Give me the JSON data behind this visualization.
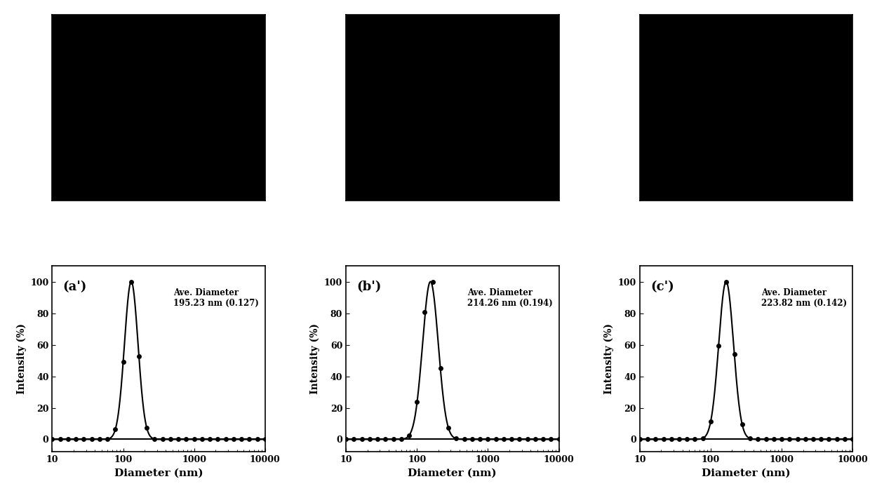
{
  "panels": [
    {
      "label": "(a')",
      "ave_diameter": "Ave. Diameter\n195.23 nm (0.127)",
      "peak_nm": 130,
      "sigma": 0.22
    },
    {
      "label": "(b')",
      "ave_diameter": "Ave. Diameter\n214.26 nm (0.194)",
      "peak_nm": 155,
      "sigma": 0.255
    },
    {
      "label": "(c')",
      "ave_diameter": "Ave. Diameter\n223.82 nm (0.142)",
      "peak_nm": 165,
      "sigma": 0.24
    }
  ],
  "xlim": [
    10,
    10000
  ],
  "ylim": [
    -8,
    110
  ],
  "yticks": [
    0,
    20,
    40,
    60,
    80,
    100
  ],
  "xticks": [
    10,
    100,
    1000,
    10000
  ],
  "xlabel": "Diameter (nm)",
  "ylabel": "Intensity (%)",
  "bg_color": "#ffffff",
  "line_color": "#000000",
  "dot_color": "#000000",
  "dot_size": 5,
  "line_width": 1.5,
  "tem_color": "#000000"
}
